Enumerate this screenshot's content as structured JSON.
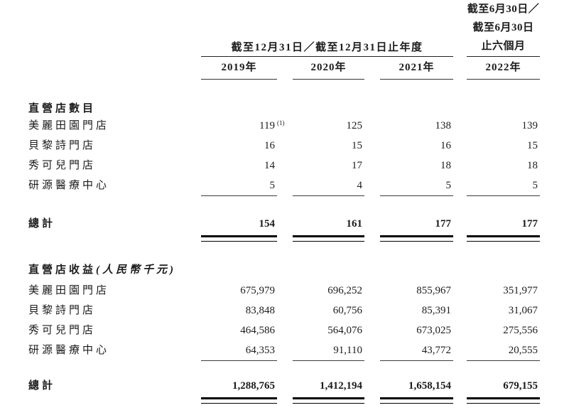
{
  "table": {
    "header": {
      "period_annual": "截至12月31日／截至12月31日止年度",
      "period_interim_lines": [
        "截至6月30日／",
        "截至6月30日",
        "止六個月"
      ],
      "years": [
        "2019年",
        "2020年",
        "2021年",
        "2022年"
      ]
    },
    "sections": [
      {
        "title": "直營店數目",
        "title_note": "",
        "rows": [
          {
            "label": "美麗田園門店",
            "values": [
              "119",
              "125",
              "138",
              "139"
            ],
            "footnote": "(1)"
          },
          {
            "label": "貝黎詩門店",
            "values": [
              "16",
              "15",
              "16",
              "15"
            ]
          },
          {
            "label": "秀可兒門店",
            "values": [
              "14",
              "17",
              "18",
              "18"
            ]
          },
          {
            "label": "研源醫療中心",
            "values": [
              "5",
              "4",
              "5",
              "5"
            ]
          }
        ],
        "total": {
          "label": "總計",
          "values": [
            "154",
            "161",
            "177",
            "177"
          ]
        }
      },
      {
        "title": "直營店收益",
        "title_note": "(人民幣千元)",
        "rows": [
          {
            "label": "美麗田園門店",
            "values": [
              "675,979",
              "696,252",
              "855,967",
              "351,977"
            ]
          },
          {
            "label": "貝黎詩門店",
            "values": [
              "83,848",
              "60,756",
              "85,391",
              "31,067"
            ]
          },
          {
            "label": "秀可兒門店",
            "values": [
              "464,586",
              "564,076",
              "673,025",
              "275,556"
            ]
          },
          {
            "label": "研源醫療中心",
            "values": [
              "64,353",
              "91,110",
              "43,772",
              "20,555"
            ]
          }
        ],
        "total": {
          "label": "總計",
          "values": [
            "1,288,765",
            "1,412,194",
            "1,658,154",
            "679,155"
          ]
        }
      }
    ]
  }
}
